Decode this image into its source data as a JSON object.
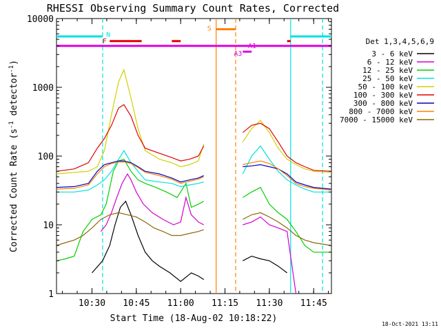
{
  "title": "RHESSI Observing Summary Count Rates, Corrected",
  "timestamp": "18-Oct-2021 13:11",
  "chart_data": {
    "type": "line",
    "title": "RHESSI Observing Summary Count Rates, Corrected",
    "xlabel": "Start Time (18-Aug-02 10:18:22)",
    "ylabel": "Corrected Count Rate (s",
    "ylabel_sup1": "-1",
    "ylabel_mid": " detector",
    "ylabel_sup2": "-1",
    "ylabel_end": ")",
    "yscale": "log",
    "ylim": [
      1,
      10000
    ],
    "xlim": [
      10.3,
      11.85
    ],
    "xtick_values": [
      10.5,
      10.75,
      11.0,
      11.25,
      11.5,
      11.75
    ],
    "xtick_labels": [
      "10:30",
      "10:45",
      "11:00",
      "11:15",
      "11:30",
      "11:45"
    ],
    "ytick_values": [
      1,
      10,
      100,
      1000,
      10000
    ],
    "ytick_labels": [
      "1",
      "10",
      "100",
      "1000",
      "10000"
    ],
    "grid": false,
    "legend_title": "Det 1,3,4,5,6,9",
    "legend_position": "right",
    "series": [
      {
        "name": "3 - 6 keV",
        "color": "#000000",
        "x": [
          10.5,
          10.56,
          10.6,
          10.63,
          10.66,
          10.69,
          10.72,
          10.76,
          10.8,
          10.84,
          10.88,
          10.94,
          11.0,
          11.06,
          11.1,
          11.13,
          11.35,
          11.4,
          11.45,
          11.5,
          11.55,
          11.6
        ],
        "y": [
          2,
          3,
          5,
          10,
          18,
          22,
          14,
          7,
          4,
          3,
          2.5,
          2,
          1.5,
          2,
          1.8,
          1.6,
          3,
          3.5,
          3.2,
          3,
          2.5,
          2
        ]
      },
      {
        "name": "6 - 12 keV",
        "color": "#d000d0",
        "x": [
          10.55,
          10.58,
          10.61,
          10.64,
          10.67,
          10.7,
          10.72,
          10.75,
          10.79,
          10.84,
          10.9,
          10.96,
          11.0,
          11.03,
          11.06,
          11.1,
          11.13,
          11.35,
          11.4,
          11.45,
          11.5,
          11.55,
          11.6,
          11.65
        ],
        "y": [
          8,
          10,
          15,
          25,
          40,
          55,
          45,
          30,
          20,
          15,
          12,
          10,
          11,
          25,
          14,
          11,
          10,
          10,
          11,
          13,
          10,
          9,
          8,
          1
        ]
      },
      {
        "name": "12 - 25 keV",
        "color": "#00d000",
        "x": [
          10.3,
          10.35,
          10.4,
          10.45,
          10.5,
          10.55,
          10.58,
          10.62,
          10.65,
          10.68,
          10.72,
          10.76,
          10.8,
          10.86,
          10.92,
          10.98,
          11.03,
          11.06,
          11.1,
          11.13,
          11.35,
          11.4,
          11.45,
          11.5,
          11.55,
          11.6,
          11.65,
          11.7,
          11.75,
          11.85
        ],
        "y": [
          3,
          3.2,
          3.5,
          8,
          12,
          14,
          20,
          60,
          85,
          90,
          60,
          45,
          40,
          35,
          30,
          25,
          40,
          18,
          20,
          22,
          25,
          30,
          35,
          20,
          15,
          12,
          8,
          5,
          4,
          4
        ]
      },
      {
        "name": "25 - 50 keV",
        "color": "#00e0e0",
        "x": [
          10.3,
          10.4,
          10.48,
          10.53,
          10.57,
          10.61,
          10.65,
          10.68,
          10.72,
          10.76,
          10.8,
          10.88,
          10.95,
          11.0,
          11.05,
          11.1,
          11.13,
          11.35,
          11.4,
          11.45,
          11.5,
          11.55,
          11.6,
          11.65,
          11.7,
          11.75,
          11.85
        ],
        "y": [
          30,
          30,
          32,
          38,
          45,
          60,
          90,
          120,
          80,
          60,
          45,
          42,
          40,
          36,
          38,
          40,
          42,
          55,
          100,
          140,
          90,
          60,
          45,
          38,
          33,
          30,
          30
        ]
      },
      {
        "name": "50 - 100 keV",
        "color": "#d0d000",
        "x": [
          10.3,
          10.4,
          10.48,
          10.53,
          10.57,
          10.61,
          10.65,
          10.68,
          10.72,
          10.76,
          10.8,
          10.88,
          10.95,
          11.0,
          11.05,
          11.1,
          11.13,
          11.35,
          11.4,
          11.45,
          11.5,
          11.55,
          11.6,
          11.65,
          11.7,
          11.75,
          11.85
        ],
        "y": [
          55,
          58,
          60,
          70,
          120,
          400,
          1200,
          1800,
          700,
          250,
          120,
          90,
          80,
          70,
          75,
          85,
          150,
          160,
          250,
          330,
          220,
          130,
          90,
          75,
          65,
          60,
          58
        ]
      },
      {
        "name": "100 - 300 keV",
        "color": "#e00000",
        "x": [
          10.3,
          10.4,
          10.48,
          10.53,
          10.57,
          10.61,
          10.65,
          10.68,
          10.72,
          10.76,
          10.8,
          10.88,
          10.95,
          11.0,
          11.05,
          11.1,
          11.13,
          11.35,
          11.4,
          11.45,
          11.5,
          11.55,
          11.6,
          11.65,
          11.7,
          11.75,
          11.85
        ],
        "y": [
          60,
          65,
          80,
          130,
          180,
          280,
          500,
          560,
          380,
          200,
          130,
          110,
          95,
          85,
          90,
          100,
          140,
          220,
          280,
          300,
          250,
          160,
          100,
          80,
          70,
          62,
          60
        ]
      },
      {
        "name": "300 - 800 keV",
        "color": "#0000c0",
        "x": [
          10.3,
          10.4,
          10.48,
          10.53,
          10.57,
          10.61,
          10.65,
          10.68,
          10.72,
          10.76,
          10.8,
          10.88,
          10.95,
          11.0,
          11.05,
          11.1,
          11.13,
          11.35,
          11.4,
          11.45,
          11.5,
          11.55,
          11.6,
          11.65,
          11.7,
          11.75,
          11.85
        ],
        "y": [
          35,
          36,
          40,
          60,
          75,
          80,
          85,
          85,
          80,
          70,
          60,
          55,
          48,
          42,
          45,
          48,
          52,
          70,
          72,
          75,
          70,
          65,
          55,
          42,
          38,
          35,
          33
        ]
      },
      {
        "name": "800 - 7000 keV",
        "color": "#ff8000",
        "x": [
          10.3,
          10.4,
          10.48,
          10.53,
          10.57,
          10.61,
          10.65,
          10.68,
          10.72,
          10.76,
          10.8,
          10.88,
          10.95,
          11.0,
          11.05,
          11.1,
          11.13,
          11.35,
          11.4,
          11.45,
          11.5,
          11.55,
          11.6,
          11.65,
          11.7,
          11.75,
          11.85
        ],
        "y": [
          33,
          34,
          38,
          55,
          70,
          78,
          82,
          82,
          78,
          68,
          58,
          52,
          46,
          40,
          43,
          46,
          50,
          75,
          80,
          85,
          78,
          65,
          52,
          40,
          36,
          34,
          32
        ]
      },
      {
        "name": "7000 - 15000 keV",
        "color": "#8b6508",
        "x": [
          10.3,
          10.35,
          10.4,
          10.45,
          10.5,
          10.55,
          10.6,
          10.65,
          10.7,
          10.75,
          10.8,
          10.85,
          10.9,
          10.95,
          11.0,
          11.05,
          11.1,
          11.13,
          11.35,
          11.4,
          11.45,
          11.5,
          11.55,
          11.6,
          11.65,
          11.7,
          11.75,
          11.85
        ],
        "y": [
          5,
          5.5,
          6,
          7,
          9,
          12,
          14,
          15,
          14,
          13,
          11,
          9,
          8,
          7,
          7,
          7.5,
          8,
          8.5,
          12,
          14,
          15,
          13,
          11,
          9,
          7,
          6,
          5.5,
          5
        ]
      }
    ],
    "attenuator_lines": [
      {
        "x": 11.2,
        "color": "#ff8000",
        "style": "solid"
      },
      {
        "x": 11.31,
        "color": "#ff8000",
        "style": "dashed"
      },
      {
        "x": 10.56,
        "color": "#00e0e0",
        "style": "dashed"
      },
      {
        "x": 11.62,
        "color": "#00e0e0",
        "style": "solid"
      },
      {
        "x": 11.8,
        "color": "#00e0e0",
        "style": "dashed"
      }
    ],
    "flags": [
      {
        "label": "N",
        "color": "#00e0e0",
        "level": 5500,
        "segments": [
          [
            10.3,
            10.56
          ],
          [
            11.62,
            11.85
          ]
        ],
        "label_x": 10.58,
        "label_level": 5800
      },
      {
        "label": "F",
        "color": "#e00000",
        "level": 4700,
        "segments": [
          [
            10.6,
            10.78
          ],
          [
            10.95,
            11.0
          ],
          [
            11.6,
            11.62
          ]
        ],
        "label_x": 10.56,
        "label_level": 4700
      },
      {
        "label": "S",
        "color": "#ff8000",
        "level": 7000,
        "segments": [
          [
            11.2,
            11.31
          ]
        ],
        "label_x": 11.15,
        "label_level": 7200
      },
      {
        "label": "A1",
        "color": "#e000e0",
        "level": 4000,
        "segments": [
          [
            10.3,
            11.85
          ]
        ],
        "label_x": 11.38,
        "label_level": 4000
      },
      {
        "label": "A3",
        "color": "#e000e0",
        "level": 3300,
        "segments": [
          [
            11.35,
            11.4
          ]
        ],
        "label_x": 11.3,
        "label_level": 3100
      }
    ]
  }
}
